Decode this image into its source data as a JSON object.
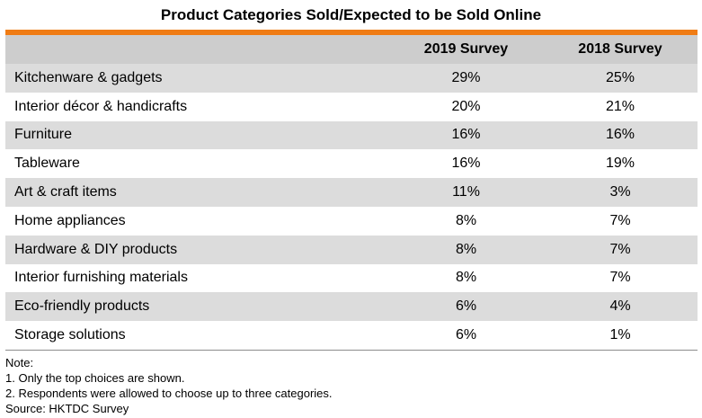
{
  "title": "Product Categories Sold/Expected to be Sold Online",
  "colors": {
    "accent_bar": "#f07c14",
    "header_bg": "#cdcdcd",
    "shaded_row": "#dcdcdc"
  },
  "table": {
    "headers": [
      "",
      "2019 Survey",
      "2018 Survey"
    ],
    "rows": [
      {
        "category": "Kitchenware & gadgets",
        "y2019": "29%",
        "y2018": "25%"
      },
      {
        "category": "Interior décor & handicrafts",
        "y2019": "20%",
        "y2018": "21%"
      },
      {
        "category": "Furniture",
        "y2019": "16%",
        "y2018": "16%"
      },
      {
        "category": "Tableware",
        "y2019": "16%",
        "y2018": "19%"
      },
      {
        "category": "Art & craft items",
        "y2019": "11%",
        "y2018": "3%"
      },
      {
        "category": "Home appliances",
        "y2019": "8%",
        "y2018": "7%"
      },
      {
        "category": "Hardware & DIY products",
        "y2019": "8%",
        "y2018": "7%"
      },
      {
        "category": "Interior furnishing materials",
        "y2019": "8%",
        "y2018": "7%"
      },
      {
        "category": "Eco-friendly products",
        "y2019": "6%",
        "y2018": "4%"
      },
      {
        "category": "Storage solutions",
        "y2019": "6%",
        "y2018": "1%"
      }
    ]
  },
  "notes": {
    "heading": "Note:",
    "lines": [
      "1. Only the top choices are shown.",
      "2. Respondents were allowed to choose up to three categories."
    ],
    "source": "Source: HKTDC Survey"
  }
}
